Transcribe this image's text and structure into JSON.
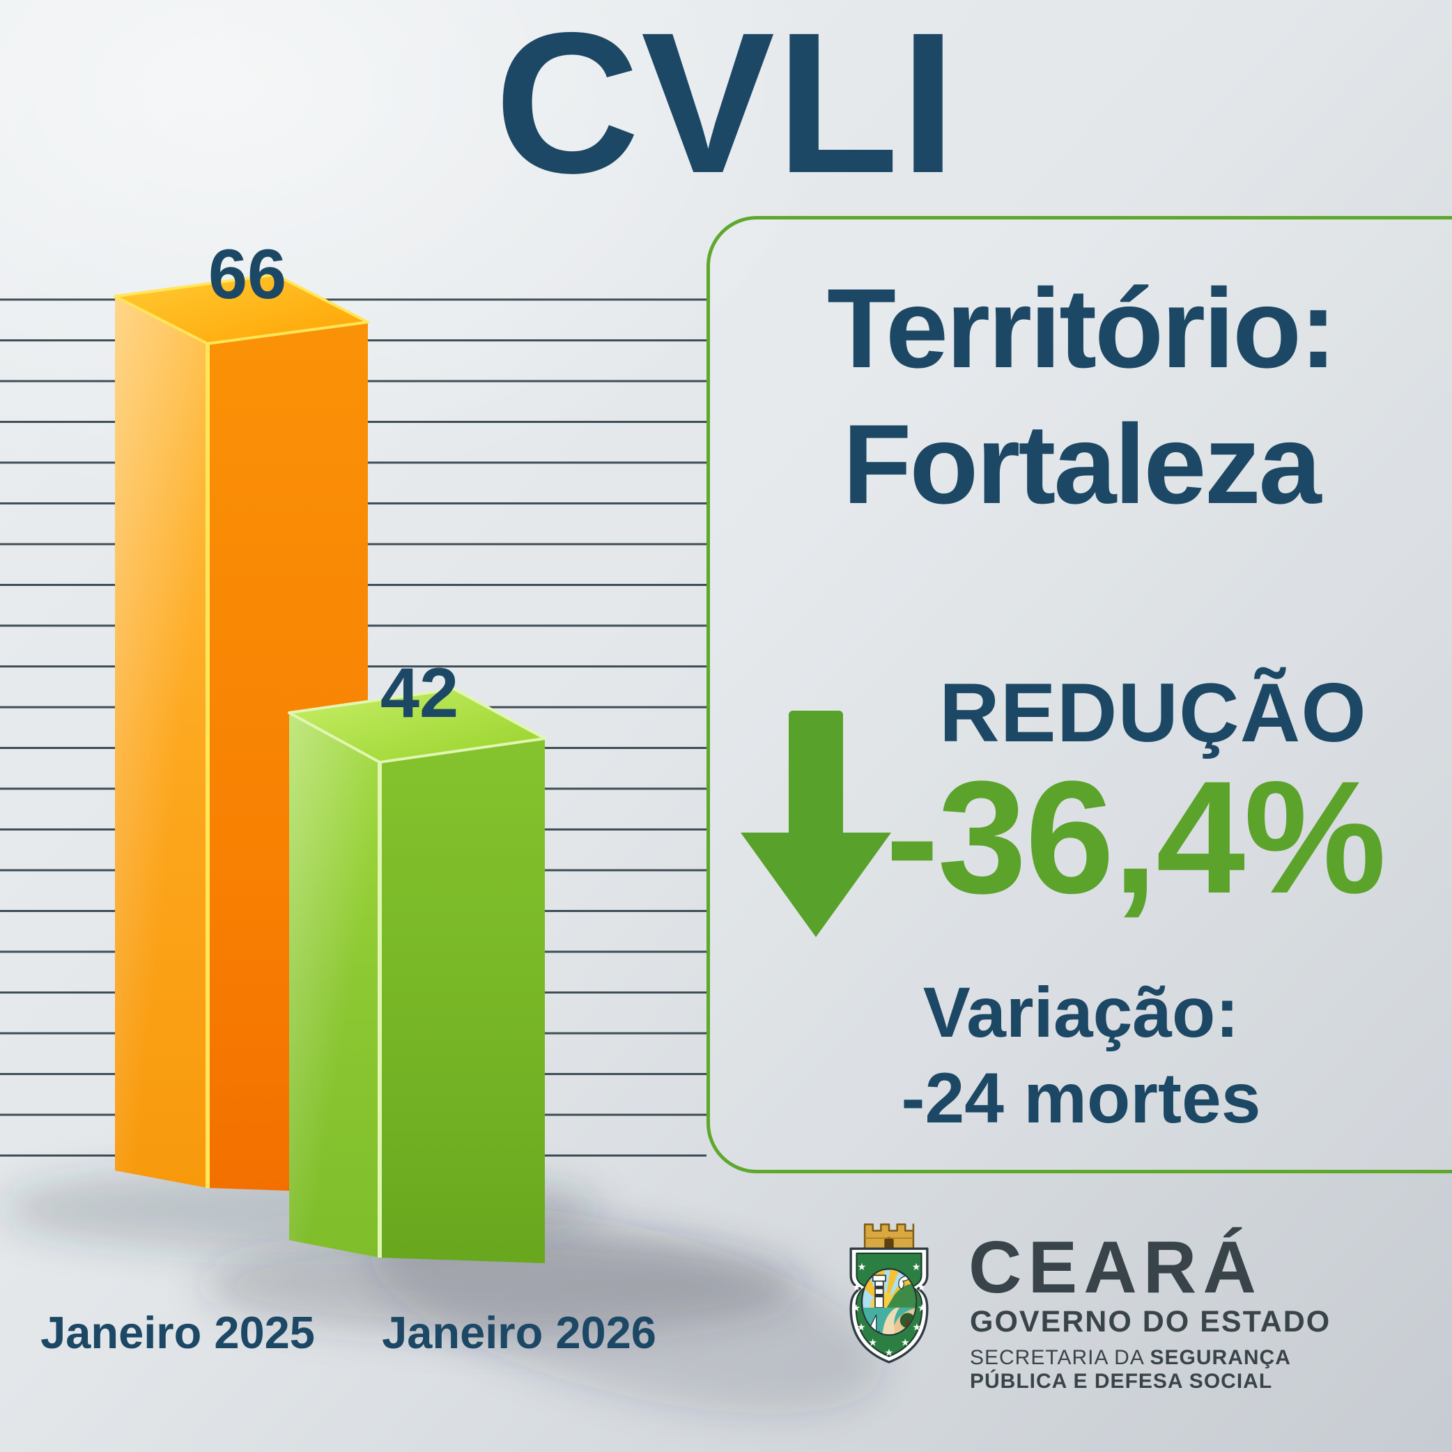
{
  "title": "CVLI",
  "chart_data": {
    "type": "bar",
    "categories": [
      "Janeiro 2025",
      "Janeiro 2026"
    ],
    "values": [
      66,
      42
    ],
    "title": "CVLI",
    "xlabel": "",
    "ylabel": "",
    "ylim": [
      0,
      70
    ],
    "grid": true,
    "legend": "none",
    "bar_colors": [
      "orange",
      "green"
    ],
    "style": "3d-prism-bars"
  },
  "panel": {
    "territory_label": "Território:",
    "territory_value": "Fortaleza",
    "reduction_label": "REDUÇÃO",
    "reduction_value": "-36,4%",
    "variation_label": "Variação:",
    "variation_value": "-24 mortes"
  },
  "footer": {
    "state_name": "CEARÁ",
    "government_label": "GOVERNO DO ESTADO",
    "secretary_prefix": "SECRETARIA DA ",
    "secretary_bold": "SEGURANÇA",
    "secretary_line2": "PÚBLICA E DEFESA SOCIAL"
  },
  "icons": {
    "reduction_arrow": "arrow-down-icon",
    "coat_of_arms": "ceara-coat-of-arms"
  },
  "colors": {
    "navy_text": "#1c4865",
    "accent_green": "#5ba32a",
    "panel_border_green": "#5ea82c",
    "bar_orange_front": "#f98b06",
    "bar_green_front": "#79ba27",
    "gridline": "#2e3d47",
    "logo_text": "#39444a"
  }
}
